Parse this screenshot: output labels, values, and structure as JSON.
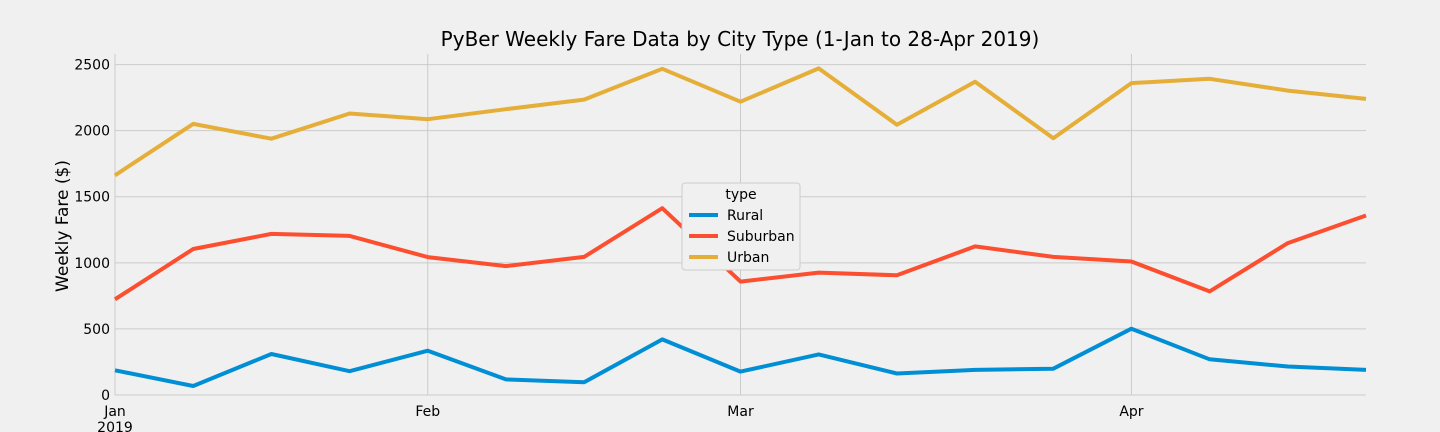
{
  "chart_data": {
    "type": "line",
    "title": "PyBer Weekly Fare Data by City Type (1-Jan to 28-Apr 2019)",
    "xlabel": "",
    "ylabel": "Weekly Fare ($)",
    "x": [
      "2019-01-06",
      "2019-01-13",
      "2019-01-20",
      "2019-01-27",
      "2019-02-03",
      "2019-02-10",
      "2019-02-17",
      "2019-02-24",
      "2019-03-03",
      "2019-03-10",
      "2019-03-17",
      "2019-03-24",
      "2019-03-31",
      "2019-04-07",
      "2019-04-14",
      "2019-04-21",
      "2019-04-28"
    ],
    "x_ticks": [
      {
        "date": "2019-01-06",
        "label": "Jan",
        "sublabel": "2019"
      },
      {
        "date": "2019-02-03",
        "label": "Feb",
        "sublabel": ""
      },
      {
        "date": "2019-03-03",
        "label": "Mar",
        "sublabel": ""
      },
      {
        "date": "2019-04-07",
        "label": "Apr",
        "sublabel": ""
      }
    ],
    "ylim": [
      0,
      2580
    ],
    "y_ticks": [
      0,
      500,
      1000,
      1500,
      2000,
      2500
    ],
    "grid": true,
    "legend": {
      "title": "type",
      "placement": "center"
    },
    "series": [
      {
        "name": "Rural",
        "color": "#008fd5",
        "values": [
          187,
          68,
          310,
          180,
          335,
          118,
          96,
          421,
          177,
          307,
          163,
          190,
          199,
          502,
          270,
          216,
          190
        ]
      },
      {
        "name": "Suburban",
        "color": "#fc4f30",
        "values": [
          724,
          1105,
          1219,
          1204,
          1043,
          975,
          1045,
          1413,
          858,
          926,
          906,
          1124,
          1045,
          1010,
          784,
          1149,
          1358
        ]
      },
      {
        "name": "Urban",
        "color": "#e5ae38",
        "values": [
          1662,
          2051,
          1939,
          2130,
          2087,
          2162,
          2235,
          2468,
          2219,
          2471,
          2045,
          2370,
          1943,
          2360,
          2392,
          2303,
          2240
        ]
      }
    ]
  }
}
